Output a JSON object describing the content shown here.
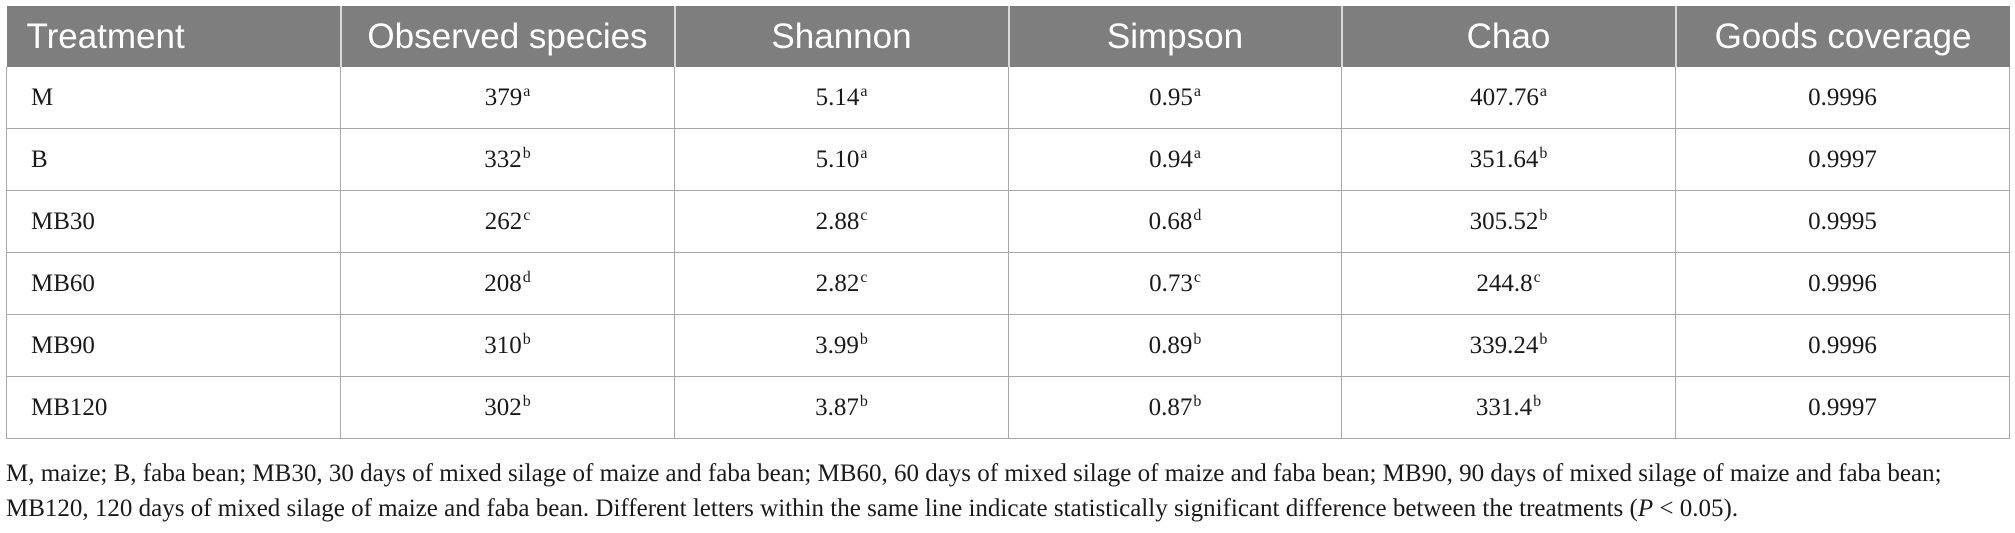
{
  "table": {
    "headers": [
      "Treatment",
      "Observed species",
      "Shannon",
      "Simpson",
      "Chao",
      "Goods coverage"
    ],
    "rows": [
      {
        "treatment": "M",
        "observed_species": "379",
        "observed_species_sig": "a",
        "shannon": "5.14",
        "shannon_sig": "a",
        "simpson": "0.95",
        "simpson_sig": "a",
        "chao": "407.76",
        "chao_sig": "a",
        "goods_coverage": "0.9996"
      },
      {
        "treatment": "B",
        "observed_species": "332",
        "observed_species_sig": "b",
        "shannon": "5.10",
        "shannon_sig": "a",
        "simpson": "0.94",
        "simpson_sig": "a",
        "chao": "351.64",
        "chao_sig": "b",
        "goods_coverage": "0.9997"
      },
      {
        "treatment": "MB30",
        "observed_species": "262",
        "observed_species_sig": "c",
        "shannon": "2.88",
        "shannon_sig": "c",
        "simpson": "0.68",
        "simpson_sig": "d",
        "chao": "305.52",
        "chao_sig": "b",
        "goods_coverage": "0.9995"
      },
      {
        "treatment": "MB60",
        "observed_species": "208",
        "observed_species_sig": "d",
        "shannon": "2.82",
        "shannon_sig": "c",
        "simpson": "0.73",
        "simpson_sig": "c",
        "chao": "244.8",
        "chao_sig": "c",
        "goods_coverage": "0.9996"
      },
      {
        "treatment": "MB90",
        "observed_species": "310",
        "observed_species_sig": "b",
        "shannon": "3.99",
        "shannon_sig": "b",
        "simpson": "0.89",
        "simpson_sig": "b",
        "chao": "339.24",
        "chao_sig": "b",
        "goods_coverage": "0.9996"
      },
      {
        "treatment": "MB120",
        "observed_species": "302",
        "observed_species_sig": "b",
        "shannon": "3.87",
        "shannon_sig": "b",
        "simpson": "0.87",
        "simpson_sig": "b",
        "chao": "331.4",
        "chao_sig": "b",
        "goods_coverage": "0.9997"
      }
    ]
  },
  "footnote": {
    "text": "M, maize; B, faba bean; MB30, 30 days of mixed silage of maize and faba bean; MB60, 60 days of mixed silage of maize and faba bean; MB90, 90 days of mixed silage of maize and faba bean; MB120, 120 days of mixed silage of maize and faba bean. Different letters within the same line indicate statistically significant difference between the treatments (",
    "p_symbol": "P",
    "p_condition": " < 0.05)."
  },
  "colors": {
    "header_background": "#7e7e7e",
    "header_text": "#ffffff",
    "grid_lines": "#a8a8a8"
  }
}
